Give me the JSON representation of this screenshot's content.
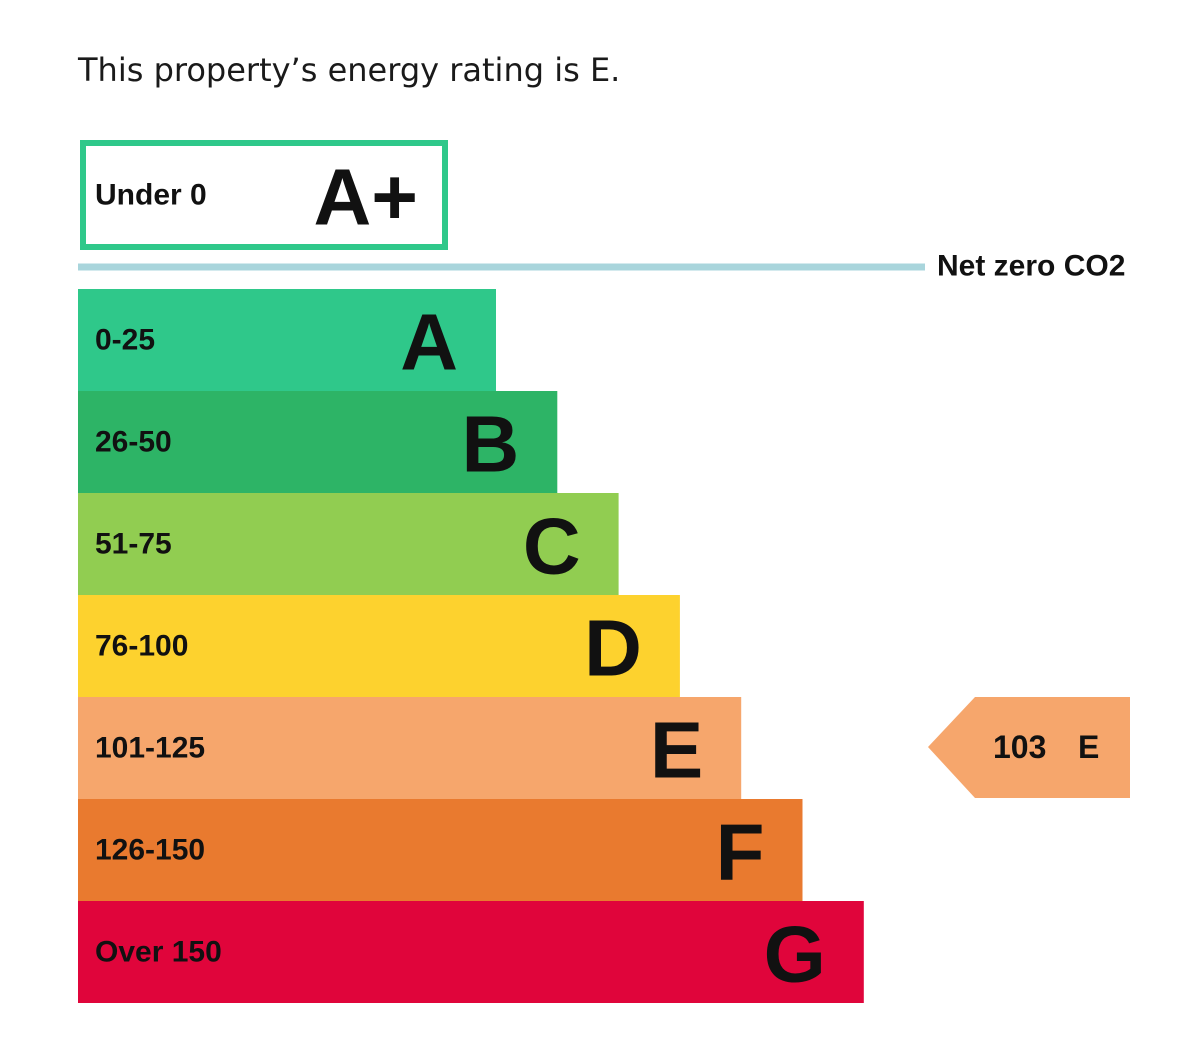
{
  "heading": "This property’s energy rating is E.",
  "top_band": {
    "range": "Under 0",
    "letter": "A+"
  },
  "net_zero_label": "Net zero CO2",
  "bands": [
    {
      "range": "0-25",
      "letter": "A"
    },
    {
      "range": "26-50",
      "letter": "B"
    },
    {
      "range": "51-75",
      "letter": "C"
    },
    {
      "range": "76-100",
      "letter": "D"
    },
    {
      "range": "101-125",
      "letter": "E"
    },
    {
      "range": "126-150",
      "letter": "F"
    },
    {
      "range": "Over 150",
      "letter": "G"
    }
  ],
  "current_rating": {
    "score": 103,
    "letter": "E"
  }
}
